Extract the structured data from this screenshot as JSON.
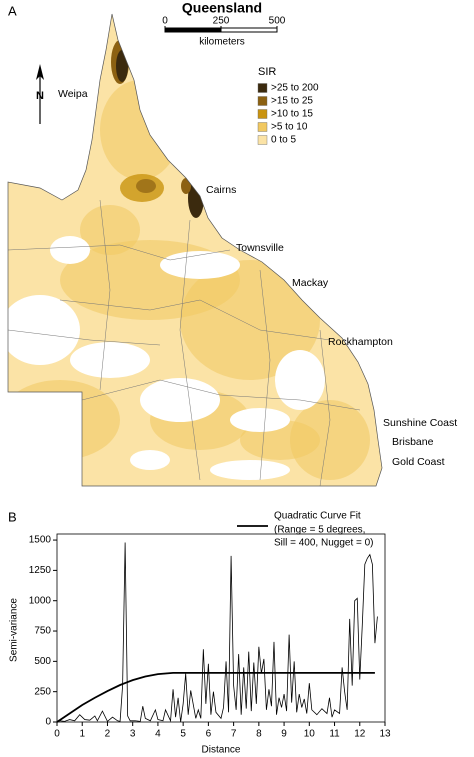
{
  "map": {
    "panel_label": "A",
    "title": "Queensland",
    "scale_ticks": [
      0,
      250,
      500
    ],
    "scale_unit": "kilometers",
    "north_label": "N",
    "legend_title": "SIR",
    "legend": [
      {
        "label": ">25 to 200",
        "color": "#3b2a0e"
      },
      {
        "label": ">15 to 25",
        "color": "#8c6112"
      },
      {
        "label": ">10 to 15",
        "color": "#c9930f"
      },
      {
        "label": ">5 to 10",
        "color": "#f1c860"
      },
      {
        "label": "0 to 5",
        "color": "#fbe3a6"
      }
    ],
    "places": [
      "Weipa",
      "Cairns",
      "Townsville",
      "Mackay",
      "Rockhampton",
      "Sunshine Coast",
      "Brisbane",
      "Gold Coast"
    ]
  },
  "chart_data": {
    "type": "line",
    "panel_label": "B",
    "x_label": "Distance",
    "y_label": "Semi-variance",
    "xlim": [
      0,
      13
    ],
    "ylim": [
      0,
      1550
    ],
    "xticks": [
      0,
      1,
      2,
      3,
      4,
      5,
      6,
      7,
      8,
      9,
      10,
      11,
      12,
      13
    ],
    "yticks": [
      0,
      250,
      500,
      750,
      1000,
      1250,
      1500
    ],
    "legend_note": [
      "(Range = 5 degrees,",
      "Sill = 400, Nugget = 0)"
    ],
    "series": [
      {
        "color": "#000000",
        "x": [
          0,
          0.1,
          0.3,
          0.5,
          0.7,
          0.9,
          1.1,
          1.3,
          1.5,
          1.6,
          1.8,
          2.0,
          2.2,
          2.4,
          2.5,
          2.6,
          2.7,
          2.8,
          2.9,
          3.1,
          3.3,
          3.4,
          3.5,
          3.7,
          3.9,
          4.0,
          4.2,
          4.3,
          4.5,
          4.6,
          4.7,
          4.8,
          4.9,
          5.0,
          5.1,
          5.2,
          5.3,
          5.5,
          5.6,
          5.7,
          5.8,
          5.9,
          6.0,
          6.1,
          6.2,
          6.3,
          6.5,
          6.6,
          6.7,
          6.8,
          6.9,
          7.0,
          7.1,
          7.2,
          7.3,
          7.4,
          7.5,
          7.6,
          7.7,
          7.8,
          7.9,
          8.0,
          8.1,
          8.2,
          8.3,
          8.4,
          8.5,
          8.6,
          8.7,
          8.8,
          8.9,
          9.0,
          9.1,
          9.2,
          9.3,
          9.4,
          9.5,
          9.6,
          9.7,
          9.8,
          9.9,
          10.0,
          10.1,
          10.3,
          10.5,
          10.7,
          10.8,
          10.9,
          11.0,
          11.2,
          11.3,
          11.4,
          11.5,
          11.6,
          11.7,
          11.8,
          11.9,
          12.0,
          12.1,
          12.2,
          12.3,
          12.4,
          12.5,
          12.6,
          12.7
        ],
        "values": [
          0,
          10,
          5,
          20,
          10,
          60,
          20,
          15,
          50,
          10,
          90,
          5,
          40,
          10,
          5,
          300,
          1480,
          50,
          10,
          10,
          5,
          130,
          30,
          10,
          100,
          20,
          10,
          100,
          10,
          270,
          40,
          200,
          0,
          150,
          400,
          60,
          260,
          30,
          100,
          30,
          600,
          150,
          480,
          60,
          250,
          80,
          30,
          120,
          500,
          80,
          1370,
          300,
          100,
          560,
          60,
          450,
          110,
          580,
          90,
          490,
          150,
          620,
          400,
          520,
          100,
          270,
          130,
          660,
          60,
          200,
          120,
          230,
          90,
          720,
          160,
          500,
          80,
          230,
          120,
          190,
          70,
          320,
          100,
          60,
          110,
          70,
          200,
          40,
          100,
          70,
          450,
          250,
          100,
          850,
          300,
          1000,
          1020,
          350,
          800,
          1300,
          1350,
          1380,
          1300,
          650,
          870
        ]
      },
      {
        "name": "Quadratic Curve Fit",
        "color": "#000000",
        "x": [
          0,
          0.5,
          1,
          1.5,
          2,
          2.5,
          3,
          3.5,
          4,
          4.6,
          12.6
        ],
        "values": [
          0,
          70,
          140,
          200,
          255,
          305,
          345,
          375,
          395,
          405,
          405
        ]
      }
    ]
  }
}
